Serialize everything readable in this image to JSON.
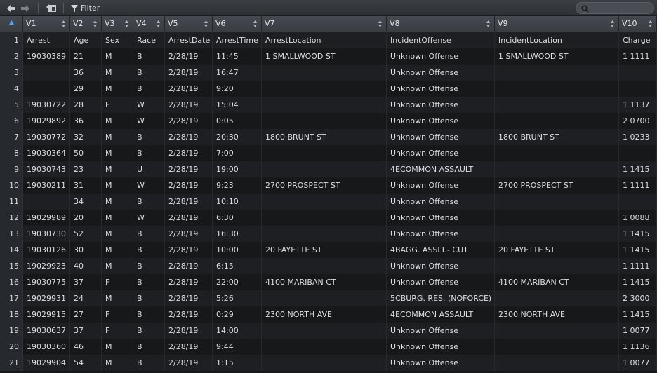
{
  "toolbar": {
    "back_icon": "arrow-left-icon",
    "forward_icon": "arrow-right-icon",
    "popout_icon": "popout-window-icon",
    "filter_label": "Filter",
    "search_placeholder": ""
  },
  "columns": [
    {
      "key": "idx",
      "label": ""
    },
    {
      "key": "v1",
      "label": "V1"
    },
    {
      "key": "v2",
      "label": "V2"
    },
    {
      "key": "v3",
      "label": "V3"
    },
    {
      "key": "v4",
      "label": "V4"
    },
    {
      "key": "v5",
      "label": "V5"
    },
    {
      "key": "v6",
      "label": "V6"
    },
    {
      "key": "v7",
      "label": "V7"
    },
    {
      "key": "v8",
      "label": "V8"
    },
    {
      "key": "v9",
      "label": "V9"
    },
    {
      "key": "v10",
      "label": "V10"
    }
  ],
  "rows": [
    [
      "1",
      "Arrest",
      "Age",
      "Sex",
      "Race",
      "ArrestDate",
      "ArrestTime",
      "ArrestLocation",
      "IncidentOffense",
      "IncidentLocation",
      "Charge"
    ],
    [
      "2",
      "19030389",
      "21",
      "M",
      "B",
      "2/28/19",
      "11:45",
      "1 SMALLWOOD ST",
      "Unknown Offense",
      "1 SMALLWOOD ST",
      "1 1111"
    ],
    [
      "3",
      "",
      "36",
      "M",
      "B",
      "2/28/19",
      "16:47",
      "",
      "Unknown Offense",
      "",
      ""
    ],
    [
      "4",
      "",
      "29",
      "M",
      "B",
      "2/28/19",
      "9:20",
      "",
      "Unknown Offense",
      "",
      ""
    ],
    [
      "5",
      "19030722",
      "28",
      "F",
      "W",
      "2/28/19",
      "15:04",
      "",
      "Unknown Offense",
      "",
      "1 1137"
    ],
    [
      "6",
      "19029892",
      "36",
      "M",
      "W",
      "2/28/19",
      "0:05",
      "",
      "Unknown Offense",
      "",
      "2 0700"
    ],
    [
      "7",
      "19030772",
      "32",
      "M",
      "B",
      "2/28/19",
      "20:30",
      "1800 BRUNT ST",
      "Unknown Offense",
      "1800 BRUNT ST",
      "1 0233"
    ],
    [
      "8",
      "19030364",
      "50",
      "M",
      "B",
      "2/28/19",
      "7:00",
      "",
      "Unknown Offense",
      "",
      ""
    ],
    [
      "9",
      "19030743",
      "23",
      "M",
      "U",
      "2/28/19",
      "19:00",
      "",
      "4ECOMMON ASSAULT",
      "",
      "1 1415"
    ],
    [
      "10",
      "19030211",
      "31",
      "M",
      "W",
      "2/28/19",
      "9:23",
      "2700 PROSPECT ST",
      "Unknown Offense",
      "2700 PROSPECT ST",
      "1 1111"
    ],
    [
      "11",
      "",
      "34",
      "M",
      "B",
      "2/28/19",
      "10:10",
      "",
      "Unknown Offense",
      "",
      ""
    ],
    [
      "12",
      "19029989",
      "20",
      "M",
      "W",
      "2/28/19",
      "6:30",
      "",
      "Unknown Offense",
      "",
      "1 0088"
    ],
    [
      "13",
      "19030730",
      "52",
      "M",
      "B",
      "2/28/19",
      "16:30",
      "",
      "Unknown Offense",
      "",
      "1 1415"
    ],
    [
      "14",
      "19030126",
      "30",
      "M",
      "B",
      "2/28/19",
      "10:00",
      "20 FAYETTE ST",
      "4BAGG. ASSLT.- CUT",
      "20 FAYETTE ST",
      "1 1415"
    ],
    [
      "15",
      "19029923",
      "40",
      "M",
      "B",
      "2/28/19",
      "6:15",
      "",
      "Unknown Offense",
      "",
      "1 1111"
    ],
    [
      "16",
      "19030775",
      "37",
      "F",
      "B",
      "2/28/19",
      "22:00",
      "4100 MARIBAN CT",
      "Unknown Offense",
      "4100 MARIBAN CT",
      "1 1415"
    ],
    [
      "17",
      "19029931",
      "24",
      "M",
      "B",
      "2/28/19",
      "5:26",
      "",
      "5CBURG. RES. (NOFORCE)",
      "",
      "2 3000"
    ],
    [
      "18",
      "19029915",
      "27",
      "F",
      "B",
      "2/28/19",
      "0:29",
      "2300 NORTH AVE",
      "4ECOMMON ASSAULT",
      "2300 NORTH AVE",
      "1 1415"
    ],
    [
      "19",
      "19030637",
      "37",
      "F",
      "B",
      "2/28/19",
      "14:00",
      "",
      "Unknown Offense",
      "",
      "1 0077"
    ],
    [
      "20",
      "19030360",
      "46",
      "M",
      "B",
      "2/28/19",
      "9:44",
      "",
      "Unknown Offense",
      "",
      "1 1136"
    ],
    [
      "21",
      "19029904",
      "54",
      "M",
      "B",
      "2/28/19",
      "1:15",
      "",
      "Unknown Offense",
      "",
      "1 0077"
    ]
  ]
}
